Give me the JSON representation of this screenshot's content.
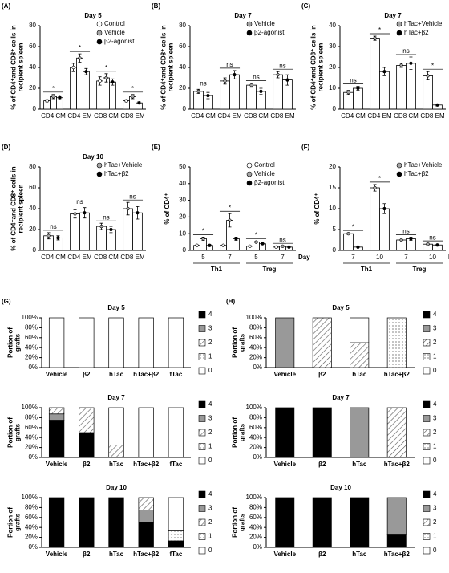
{
  "chart_data": [
    {
      "type": "bar",
      "panel_label": "(A)",
      "title": "Day 5",
      "y_label": [
        "% of CD4⁺and CD8⁺ cells in",
        "recipient spleen"
      ],
      "categories": [
        "CD4 CM",
        "CD4 EM",
        "CD8 CM",
        "CD8 EM"
      ],
      "series": [
        {
          "name": "Control",
          "color": "#ffffff",
          "values": [
            8,
            40,
            27,
            8
          ],
          "errors": [
            1,
            4,
            4,
            1
          ]
        },
        {
          "name": "Vehicle",
          "color": "#a6a6a6",
          "values": [
            12,
            49,
            30,
            12
          ],
          "errors": [
            2,
            4,
            4,
            2
          ]
        },
        {
          "name": "β2-agonist",
          "color": "#000000",
          "values": [
            11,
            36,
            26,
            6
          ],
          "errors": [
            1,
            3,
            3,
            1
          ]
        }
      ],
      "annotations": [
        "*",
        "*",
        "*",
        "*"
      ],
      "ylim": [
        0,
        80
      ],
      "yticks": [
        0,
        20,
        40,
        60,
        80
      ],
      "legend": "upper right"
    },
    {
      "type": "bar",
      "panel_label": "(B)",
      "title": "Day 7",
      "y_label": [
        "% of CD4⁺and CD8⁺ cells in",
        "recipient spleen"
      ],
      "categories": [
        "CD4 CM",
        "CD4 EM",
        "CD8 CM",
        "CD8 EM"
      ],
      "series": [
        {
          "name": "Vehicle",
          "color": "#a6a6a6",
          "values": [
            17,
            27,
            23,
            33
          ],
          "errors": [
            2,
            3,
            2,
            3
          ]
        },
        {
          "name": "β2-agonist",
          "color": "#000000",
          "values": [
            13,
            33,
            17,
            28
          ],
          "errors": [
            3,
            4,
            3,
            5
          ]
        }
      ],
      "annotations": [
        "ns",
        "ns",
        "ns",
        "ns"
      ],
      "ylim": [
        0,
        80
      ],
      "yticks": [
        0,
        20,
        40,
        60,
        80
      ],
      "legend": "upper right"
    },
    {
      "type": "bar",
      "panel_label": "(C)",
      "title": "Day 7",
      "y_label": [
        "% of CD4⁺and CD8⁺ cells in",
        "recipient spleen"
      ],
      "categories": [
        "CD4 CM",
        "CD4 EM",
        "CD8 CM",
        "CD8 EM"
      ],
      "series": [
        {
          "name": "hTac+Vehicle",
          "color": "#a6a6a6",
          "values": [
            8,
            34,
            21,
            16
          ],
          "errors": [
            1,
            1,
            1,
            2
          ]
        },
        {
          "name": "hTac+β2",
          "color": "#000000",
          "values": [
            10,
            18,
            22,
            2
          ],
          "errors": [
            1,
            2,
            3,
            0.5
          ]
        }
      ],
      "annotations": [
        "ns",
        "*",
        "ns",
        "*"
      ],
      "ylim": [
        0,
        40
      ],
      "yticks": [
        0,
        10,
        20,
        30,
        40
      ],
      "legend": "upper right"
    },
    {
      "type": "bar",
      "panel_label": "(D)",
      "title": "Day 10",
      "y_label": [
        "% of CD4⁺and CD8⁺ cells in",
        "recipient spleen"
      ],
      "categories": [
        "CD4 CM",
        "CD4 EM",
        "CD8 CM",
        "CD8 EM"
      ],
      "series": [
        {
          "name": "hTac+Vehicle",
          "color": "#a6a6a6",
          "values": [
            14,
            35,
            23,
            40
          ],
          "errors": [
            3,
            4,
            3,
            6
          ]
        },
        {
          "name": "hTac+β2",
          "color": "#000000",
          "values": [
            12,
            36,
            20,
            36
          ],
          "errors": [
            2,
            5,
            3,
            6
          ]
        }
      ],
      "annotations": [
        "ns",
        "ns",
        "ns",
        "ns"
      ],
      "ylim": [
        0,
        80
      ],
      "yticks": [
        0,
        20,
        40,
        60,
        80
      ],
      "legend": "upper right"
    },
    {
      "type": "bar",
      "panel_label": "(E)",
      "y_label": [
        "% of CD4⁺"
      ],
      "categories": [
        "5",
        "7",
        "5",
        "7"
      ],
      "groups": [
        "Th1",
        "Treg"
      ],
      "x_label": "Day",
      "series": [
        {
          "name": "Control",
          "color": "#ffffff",
          "values": [
            3,
            3,
            2.5,
            2
          ],
          "errors": [
            0.3,
            0.3,
            0.3,
            0.3
          ]
        },
        {
          "name": "Vehicle",
          "color": "#a6a6a6",
          "values": [
            7,
            18,
            5,
            2.5
          ],
          "errors": [
            1,
            4,
            0.5,
            0.3
          ]
        },
        {
          "name": "β2-agonist",
          "color": "#000000",
          "values": [
            3,
            7,
            4,
            2
          ],
          "errors": [
            0.5,
            1,
            0.4,
            0.3
          ]
        }
      ],
      "annotations": [
        "*",
        "*",
        "*",
        "ns"
      ],
      "ylim": [
        0,
        50
      ],
      "yticks": [
        0,
        10,
        20,
        30,
        40,
        50
      ],
      "legend": "upper right"
    },
    {
      "type": "bar",
      "panel_label": "(F)",
      "y_label": [
        "% of CD4⁺"
      ],
      "categories": [
        "7",
        "10",
        "7",
        "10"
      ],
      "groups": [
        "Th1",
        "Treg"
      ],
      "x_label": "Day",
      "series": [
        {
          "name": "hTac+Vehicle",
          "color": "#a6a6a6",
          "values": [
            4,
            15,
            2.5,
            1.5
          ],
          "errors": [
            0.2,
            0.8,
            0.5,
            0.2
          ]
        },
        {
          "name": "hTac+β2",
          "color": "#000000",
          "values": [
            0.8,
            10,
            2.8,
            1.3
          ],
          "errors": [
            0.1,
            1.2,
            0.4,
            0.1
          ]
        }
      ],
      "annotations": [
        "*",
        "*",
        "ns",
        "ns"
      ],
      "ylim": [
        0,
        20
      ],
      "yticks": [
        0,
        5,
        10,
        15,
        20
      ],
      "legend": "upper right"
    },
    {
      "type": "stacked_bar",
      "panel_label": "(G)",
      "title": "Day 5",
      "y_label": [
        "Portion of",
        "grafts"
      ],
      "categories": [
        "Vehicle",
        "β2",
        "hTac",
        "hTac+β2",
        "fTac"
      ],
      "series": [
        {
          "name": "4",
          "color": "#000000",
          "values": [
            0,
            0,
            0,
            0,
            0
          ]
        },
        {
          "name": "3",
          "color": "#999999",
          "values": [
            0,
            0,
            0,
            0,
            0
          ]
        },
        {
          "name": "2",
          "color": "#ffffff",
          "pattern": "hatch",
          "values": [
            0,
            0,
            0,
            0,
            0
          ]
        },
        {
          "name": "1",
          "color": "#ffffff",
          "pattern": "dots",
          "values": [
            0,
            0,
            0,
            0,
            0
          ]
        },
        {
          "name": "0",
          "color": "#ffffff",
          "values": [
            100,
            100,
            100,
            100,
            100
          ]
        }
      ],
      "ylim": [
        0,
        100
      ],
      "yticks": [
        {
          "value": 0,
          "label": "0%"
        },
        {
          "value": 20,
          "label": "20%"
        },
        {
          "value": 40,
          "label": "40%"
        },
        {
          "value": 60,
          "label": "60%"
        },
        {
          "value": 80,
          "label": "80%"
        },
        {
          "value": 100,
          "label": "100%"
        }
      ],
      "legend": "right"
    },
    {
      "type": "stacked_bar",
      "title": "Day 7",
      "y_label": [
        "Portion of",
        "grafts"
      ],
      "categories": [
        "Vehicle",
        "β2",
        "hTac",
        "hTac+β2",
        "fTac"
      ],
      "series": [
        {
          "name": "4",
          "color": "#000000",
          "values": [
            75,
            50,
            0,
            0,
            0
          ]
        },
        {
          "name": "3",
          "color": "#999999",
          "values": [
            12.5,
            0,
            0,
            0,
            0
          ]
        },
        {
          "name": "2",
          "color": "#ffffff",
          "pattern": "hatch",
          "values": [
            12.5,
            50,
            25,
            0,
            0
          ]
        },
        {
          "name": "1",
          "color": "#ffffff",
          "pattern": "dots",
          "values": [
            0,
            0,
            0,
            0,
            0
          ]
        },
        {
          "name": "0",
          "color": "#ffffff",
          "values": [
            0,
            0,
            75,
            100,
            100
          ]
        }
      ],
      "ylim": [
        0,
        100
      ],
      "yticks": [
        {
          "value": 0,
          "label": "0%"
        },
        {
          "value": 20,
          "label": "20%"
        },
        {
          "value": 40,
          "label": "40%"
        },
        {
          "value": 60,
          "label": "60%"
        },
        {
          "value": 80,
          "label": "80%"
        },
        {
          "value": 100,
          "label": "100%"
        }
      ],
      "legend": "right"
    },
    {
      "type": "stacked_bar",
      "title": "Day 10",
      "y_label": [
        "Portion of",
        "grafts"
      ],
      "categories": [
        "Vehicle",
        "β2",
        "hTac",
        "hTac+β2",
        "fTac"
      ],
      "series": [
        {
          "name": "4",
          "color": "#000000",
          "values": [
            100,
            100,
            100,
            50,
            13
          ]
        },
        {
          "name": "3",
          "color": "#999999",
          "values": [
            0,
            0,
            0,
            25,
            0
          ]
        },
        {
          "name": "2",
          "color": "#ffffff",
          "pattern": "hatch",
          "values": [
            0,
            0,
            0,
            25,
            0
          ]
        },
        {
          "name": "1",
          "color": "#ffffff",
          "pattern": "dots",
          "values": [
            0,
            0,
            0,
            0,
            20
          ]
        },
        {
          "name": "0",
          "color": "#ffffff",
          "values": [
            0,
            0,
            0,
            0,
            67
          ]
        }
      ],
      "ylim": [
        0,
        100
      ],
      "yticks": [
        {
          "value": 0,
          "label": "0%"
        },
        {
          "value": 20,
          "label": "20%"
        },
        {
          "value": 40,
          "label": "40%"
        },
        {
          "value": 60,
          "label": "60%"
        },
        {
          "value": 80,
          "label": "80%"
        },
        {
          "value": 100,
          "label": "100%"
        }
      ],
      "legend": "right"
    },
    {
      "type": "stacked_bar",
      "panel_label": "(H)",
      "title": "Day 5",
      "y_label": [
        "Portion of",
        "grafts"
      ],
      "categories": [
        "Vehicle",
        "β2",
        "hTac",
        "hTac+β2"
      ],
      "series": [
        {
          "name": "4",
          "color": "#000000",
          "values": [
            0,
            0,
            0,
            0
          ]
        },
        {
          "name": "3",
          "color": "#999999",
          "values": [
            100,
            0,
            0,
            0
          ]
        },
        {
          "name": "2",
          "color": "#ffffff",
          "pattern": "hatch",
          "values": [
            0,
            100,
            50,
            0
          ]
        },
        {
          "name": "1",
          "color": "#ffffff",
          "pattern": "dots",
          "values": [
            0,
            0,
            0,
            100
          ]
        },
        {
          "name": "0",
          "color": "#ffffff",
          "values": [
            0,
            0,
            50,
            0
          ]
        }
      ],
      "ylim": [
        0,
        100
      ],
      "yticks": [
        {
          "value": 0,
          "label": "0%"
        },
        {
          "value": 20,
          "label": "20%"
        },
        {
          "value": 40,
          "label": "40%"
        },
        {
          "value": 60,
          "label": "60%"
        },
        {
          "value": 80,
          "label": "80%"
        },
        {
          "value": 100,
          "label": "100%"
        }
      ],
      "legend": "right"
    },
    {
      "type": "stacked_bar",
      "title": "Day 7",
      "y_label": [
        "Portion of",
        "grafts"
      ],
      "categories": [
        "Vehicle",
        "β2",
        "hTac",
        "hTac+β2"
      ],
      "series": [
        {
          "name": "4",
          "color": "#000000",
          "values": [
            100,
            100,
            0,
            0
          ]
        },
        {
          "name": "3",
          "color": "#999999",
          "values": [
            0,
            0,
            100,
            0
          ]
        },
        {
          "name": "2",
          "color": "#ffffff",
          "pattern": "hatch",
          "values": [
            0,
            0,
            0,
            100
          ]
        },
        {
          "name": "1",
          "color": "#ffffff",
          "pattern": "dots",
          "values": [
            0,
            0,
            0,
            0
          ]
        },
        {
          "name": "0",
          "color": "#ffffff",
          "values": [
            0,
            0,
            0,
            0
          ]
        }
      ],
      "ylim": [
        0,
        100
      ],
      "yticks": [
        {
          "value": 0,
          "label": "0%"
        },
        {
          "value": 20,
          "label": "20%"
        },
        {
          "value": 40,
          "label": "40%"
        },
        {
          "value": 60,
          "label": "60%"
        },
        {
          "value": 80,
          "label": "80%"
        },
        {
          "value": 100,
          "label": "100%"
        }
      ],
      "legend": "right"
    },
    {
      "type": "stacked_bar",
      "title": "Day 10",
      "y_label": [
        "Portion of",
        "grafts"
      ],
      "categories": [
        "Vehicle",
        "β2",
        "hTac",
        "hTac+β2"
      ],
      "series": [
        {
          "name": "4",
          "color": "#000000",
          "values": [
            100,
            100,
            100,
            25
          ]
        },
        {
          "name": "3",
          "color": "#999999",
          "values": [
            0,
            0,
            0,
            75
          ]
        },
        {
          "name": "2",
          "color": "#ffffff",
          "pattern": "hatch",
          "values": [
            0,
            0,
            0,
            0
          ]
        },
        {
          "name": "1",
          "color": "#ffffff",
          "pattern": "dots",
          "values": [
            0,
            0,
            0,
            0
          ]
        },
        {
          "name": "0",
          "color": "#ffffff",
          "values": [
            0,
            0,
            0,
            0
          ]
        }
      ],
      "ylim": [
        0,
        100
      ],
      "yticks": [
        {
          "value": 0,
          "label": "0%"
        },
        {
          "value": 20,
          "label": "20%"
        },
        {
          "value": 40,
          "label": "40%"
        },
        {
          "value": 60,
          "label": "60%"
        },
        {
          "value": 80,
          "label": "80%"
        },
        {
          "value": 100,
          "label": "100%"
        }
      ],
      "legend": "right"
    }
  ]
}
